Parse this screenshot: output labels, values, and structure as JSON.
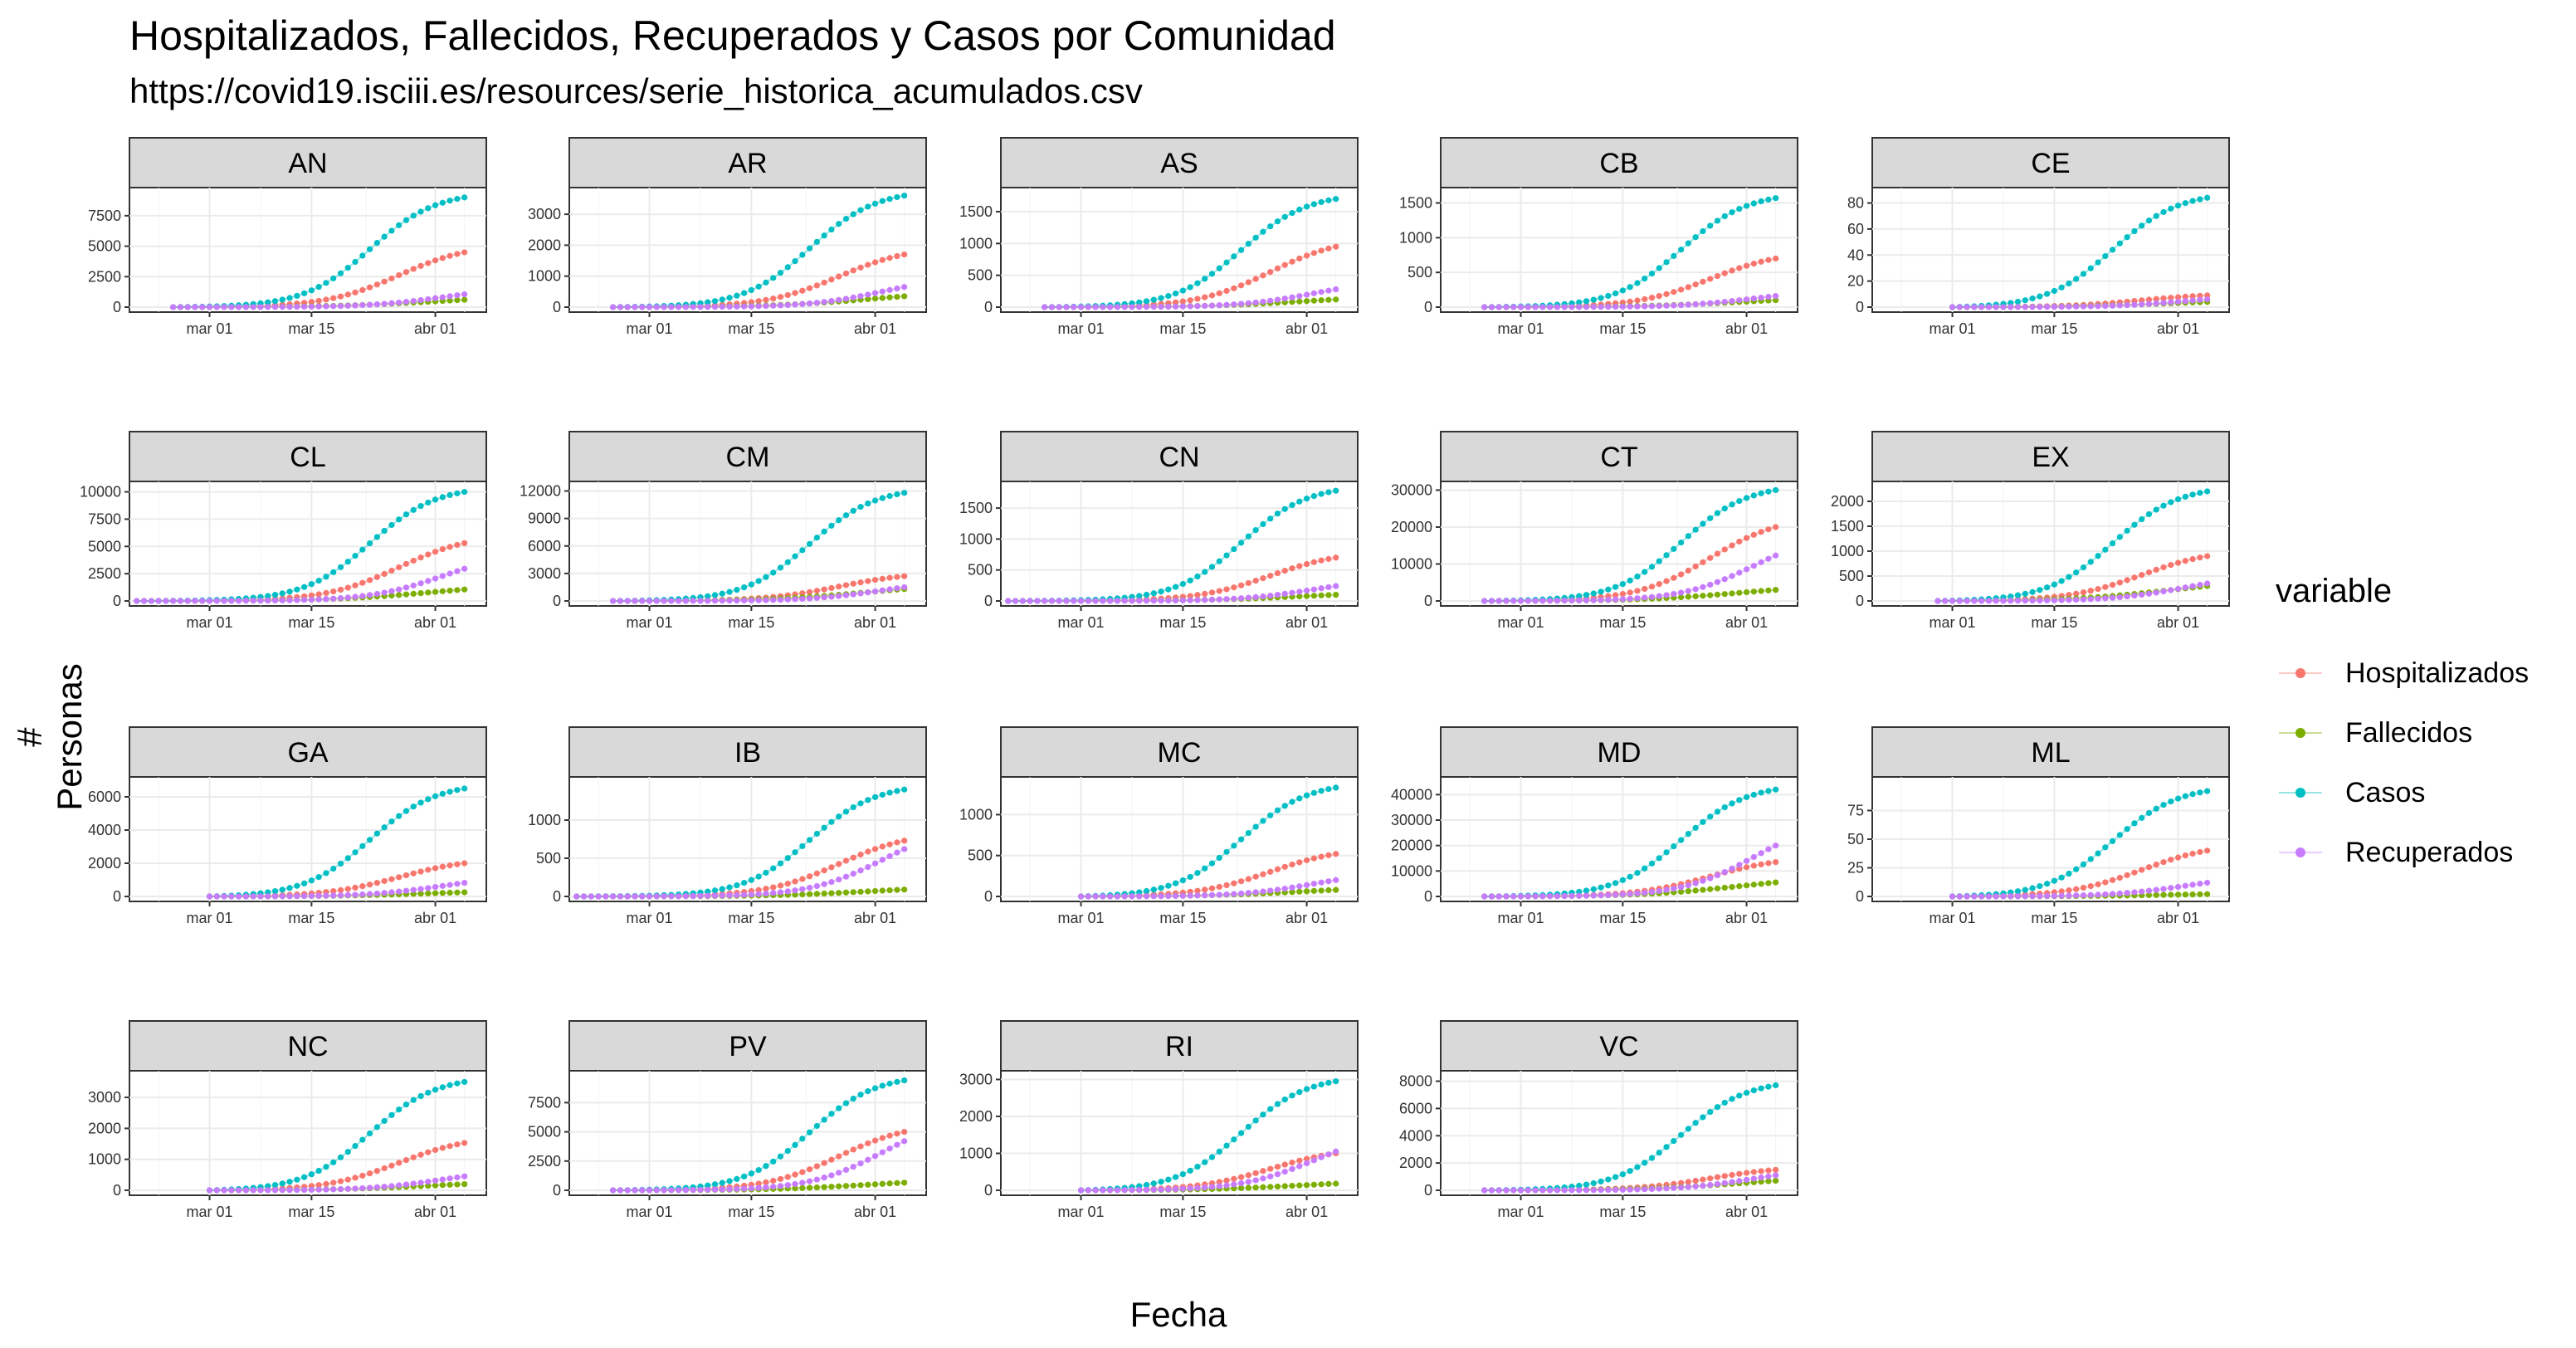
{
  "title": "Hospitalizados, Fallecidos, Recuperados y Casos por Comunidad",
  "subtitle": "https://covid19.isciii.es/resources/serie_historica_acumulados.csv",
  "xlabel": "Fecha",
  "ylabel": "# Personas",
  "legend": {
    "title": "variable",
    "items": [
      {
        "label": "Hospitalizados",
        "color": "#F8766D"
      },
      {
        "label": "Fallecidos",
        "color": "#7CAE00"
      },
      {
        "label": "Casos",
        "color": "#00BFC4"
      },
      {
        "label": "Recuperados",
        "color": "#C77CFF"
      }
    ]
  },
  "chart_data": {
    "type": "scatter",
    "facet_by": "Comunidad",
    "x_ticks": [
      "mar 01",
      "mar 15",
      "abr 01"
    ],
    "x_tick_days": [
      0,
      14,
      31
    ],
    "xlim": [
      -11,
      38
    ],
    "series_names": [
      "Hospitalizados",
      "Fallecidos",
      "Casos",
      "Recuperados"
    ],
    "panels": [
      {
        "name": "AN",
        "start": -5,
        "ylim": [
          0,
          9400
        ],
        "yticks": [
          0,
          2500,
          5000,
          7500
        ],
        "finals": {
          "Hospitalizados": 4500,
          "Fallecidos": 600,
          "Casos": 9000,
          "Recuperados": 1050
        },
        "tick_labels": [
          "0",
          "2500",
          "5000",
          "7500"
        ]
      },
      {
        "name": "AR",
        "start": -5,
        "ylim": [
          0,
          3700
        ],
        "yticks": [
          0,
          1000,
          2000,
          3000
        ],
        "finals": {
          "Hospitalizados": 1700,
          "Fallecidos": 350,
          "Casos": 3600,
          "Recuperados": 650
        },
        "tick_labels": [
          "0",
          "1000",
          "2000",
          "3000"
        ]
      },
      {
        "name": "AS",
        "start": -5,
        "ylim": [
          0,
          1800
        ],
        "yticks": [
          0,
          500,
          1000,
          1500
        ],
        "finals": {
          "Hospitalizados": 950,
          "Fallecidos": 120,
          "Casos": 1700,
          "Recuperados": 280
        },
        "tick_labels": [
          "0",
          "500",
          "1000",
          "1500"
        ]
      },
      {
        "name": "CB",
        "start": -5,
        "ylim": [
          0,
          1650
        ],
        "yticks": [
          0,
          500,
          1000,
          1500
        ],
        "finals": {
          "Hospitalizados": 700,
          "Fallecidos": 100,
          "Casos": 1570,
          "Recuperados": 160
        },
        "tick_labels": [
          "0",
          "500",
          "1000",
          "1500"
        ]
      },
      {
        "name": "CE",
        "start": 0,
        "ylim": [
          0,
          88
        ],
        "yticks": [
          0,
          20,
          40,
          60,
          80
        ],
        "finals": {
          "Hospitalizados": 9,
          "Fallecidos": 4,
          "Casos": 84,
          "Recuperados": 6
        },
        "tick_labels": [
          "0",
          "20",
          "40",
          "60",
          "80"
        ]
      },
      {
        "name": "CL",
        "start": -10,
        "ylim": [
          0,
          10500
        ],
        "yticks": [
          0,
          2500,
          5000,
          7500,
          10000
        ],
        "finals": {
          "Hospitalizados": 5300,
          "Fallecidos": 1050,
          "Casos": 10000,
          "Recuperados": 2950
        },
        "tick_labels": [
          "0",
          "2500",
          "5000",
          "7500",
          "10000"
        ]
      },
      {
        "name": "CM",
        "start": -5,
        "ylim": [
          0,
          12500
        ],
        "yticks": [
          0,
          3000,
          6000,
          9000,
          12000
        ],
        "finals": {
          "Hospitalizados": 2700,
          "Fallecidos": 1300,
          "Casos": 11800,
          "Recuperados": 1500
        },
        "tick_labels": [
          "0",
          "3000",
          "6000",
          "9000",
          "12000"
        ]
      },
      {
        "name": "CN",
        "start": -10,
        "ylim": [
          0,
          1850
        ],
        "yticks": [
          0,
          500,
          1000,
          1500
        ],
        "finals": {
          "Hospitalizados": 700,
          "Fallecidos": 100,
          "Casos": 1780,
          "Recuperados": 240
        },
        "tick_labels": [
          "0",
          "500",
          "1000",
          "1500"
        ]
      },
      {
        "name": "CT",
        "start": -5,
        "ylim": [
          0,
          31000
        ],
        "yticks": [
          0,
          10000,
          20000,
          30000
        ],
        "finals": {
          "Hospitalizados": 20000,
          "Fallecidos": 3000,
          "Casos": 30000,
          "Recuperados": 12300
        },
        "tick_labels": [
          "0",
          "10000",
          "20000",
          "30000"
        ]
      },
      {
        "name": "EX",
        "start": -2,
        "ylim": [
          0,
          2300
        ],
        "yticks": [
          0,
          500,
          1000,
          1500,
          2000
        ],
        "finals": {
          "Hospitalizados": 900,
          "Fallecidos": 300,
          "Casos": 2200,
          "Recuperados": 350
        },
        "tick_labels": [
          "0",
          "500",
          "1000",
          "1500",
          "2000"
        ]
      },
      {
        "name": "GA",
        "start": 0,
        "ylim": [
          0,
          6900
        ],
        "yticks": [
          0,
          2000,
          4000,
          6000
        ],
        "finals": {
          "Hospitalizados": 2000,
          "Fallecidos": 250,
          "Casos": 6500,
          "Recuperados": 820
        },
        "tick_labels": [
          "0",
          "2000",
          "4000",
          "6000"
        ]
      },
      {
        "name": "IB",
        "start": -10,
        "ylim": [
          0,
          1500
        ],
        "yticks": [
          0,
          500,
          1000
        ],
        "finals": {
          "Hospitalizados": 730,
          "Fallecidos": 90,
          "Casos": 1400,
          "Recuperados": 620
        },
        "tick_labels": [
          "0",
          "500",
          "1000"
        ]
      },
      {
        "name": "MC",
        "start": 0,
        "ylim": [
          0,
          1400
        ],
        "yticks": [
          0,
          500,
          1000
        ],
        "finals": {
          "Hospitalizados": 520,
          "Fallecidos": 80,
          "Casos": 1330,
          "Recuperados": 200
        },
        "tick_labels": [
          "0",
          "500",
          "1000"
        ]
      },
      {
        "name": "MD",
        "start": -5,
        "ylim": [
          0,
          45000
        ],
        "yticks": [
          0,
          10000,
          20000,
          30000,
          40000
        ],
        "finals": {
          "Hospitalizados": 13500,
          "Fallecidos": 5500,
          "Casos": 42000,
          "Recuperados": 20000
        },
        "tick_labels": [
          "0",
          "10000",
          "20000",
          "30000",
          "40000"
        ]
      },
      {
        "name": "ML",
        "start": 0,
        "ylim": [
          0,
          100
        ],
        "yticks": [
          0,
          25,
          50,
          75
        ],
        "finals": {
          "Hospitalizados": 40,
          "Fallecidos": 2,
          "Casos": 92,
          "Recuperados": 12
        },
        "tick_labels": [
          "0",
          "25",
          "50",
          "75"
        ]
      },
      {
        "name": "NC",
        "start": 0,
        "ylim": [
          0,
          3700
        ],
        "yticks": [
          0,
          1000,
          2000,
          3000
        ],
        "finals": {
          "Hospitalizados": 1530,
          "Fallecidos": 200,
          "Casos": 3500,
          "Recuperados": 450
        },
        "tick_labels": [
          "0",
          "1000",
          "2000",
          "3000"
        ]
      },
      {
        "name": "PV",
        "start": -5,
        "ylim": [
          0,
          9800
        ],
        "yticks": [
          0,
          2500,
          5000,
          7500
        ],
        "finals": {
          "Hospitalizados": 5000,
          "Fallecidos": 650,
          "Casos": 9400,
          "Recuperados": 4200
        },
        "tick_labels": [
          "0",
          "2500",
          "5000",
          "7500"
        ]
      },
      {
        "name": "RI",
        "start": 0,
        "ylim": [
          0,
          3100
        ],
        "yticks": [
          0,
          1000,
          2000,
          3000
        ],
        "finals": {
          "Hospitalizados": 1000,
          "Fallecidos": 180,
          "Casos": 2950,
          "Recuperados": 1050
        },
        "tick_labels": [
          "0",
          "1000",
          "2000",
          "3000"
        ]
      },
      {
        "name": "VC",
        "start": -5,
        "ylim": [
          0,
          8400
        ],
        "yticks": [
          0,
          2000,
          4000,
          6000,
          8000
        ],
        "finals": {
          "Hospitalizados": 1500,
          "Fallecidos": 700,
          "Casos": 7700,
          "Recuperados": 1100
        },
        "tick_labels": [
          "0",
          "2000",
          "4000",
          "6000",
          "8000"
        ]
      }
    ]
  }
}
